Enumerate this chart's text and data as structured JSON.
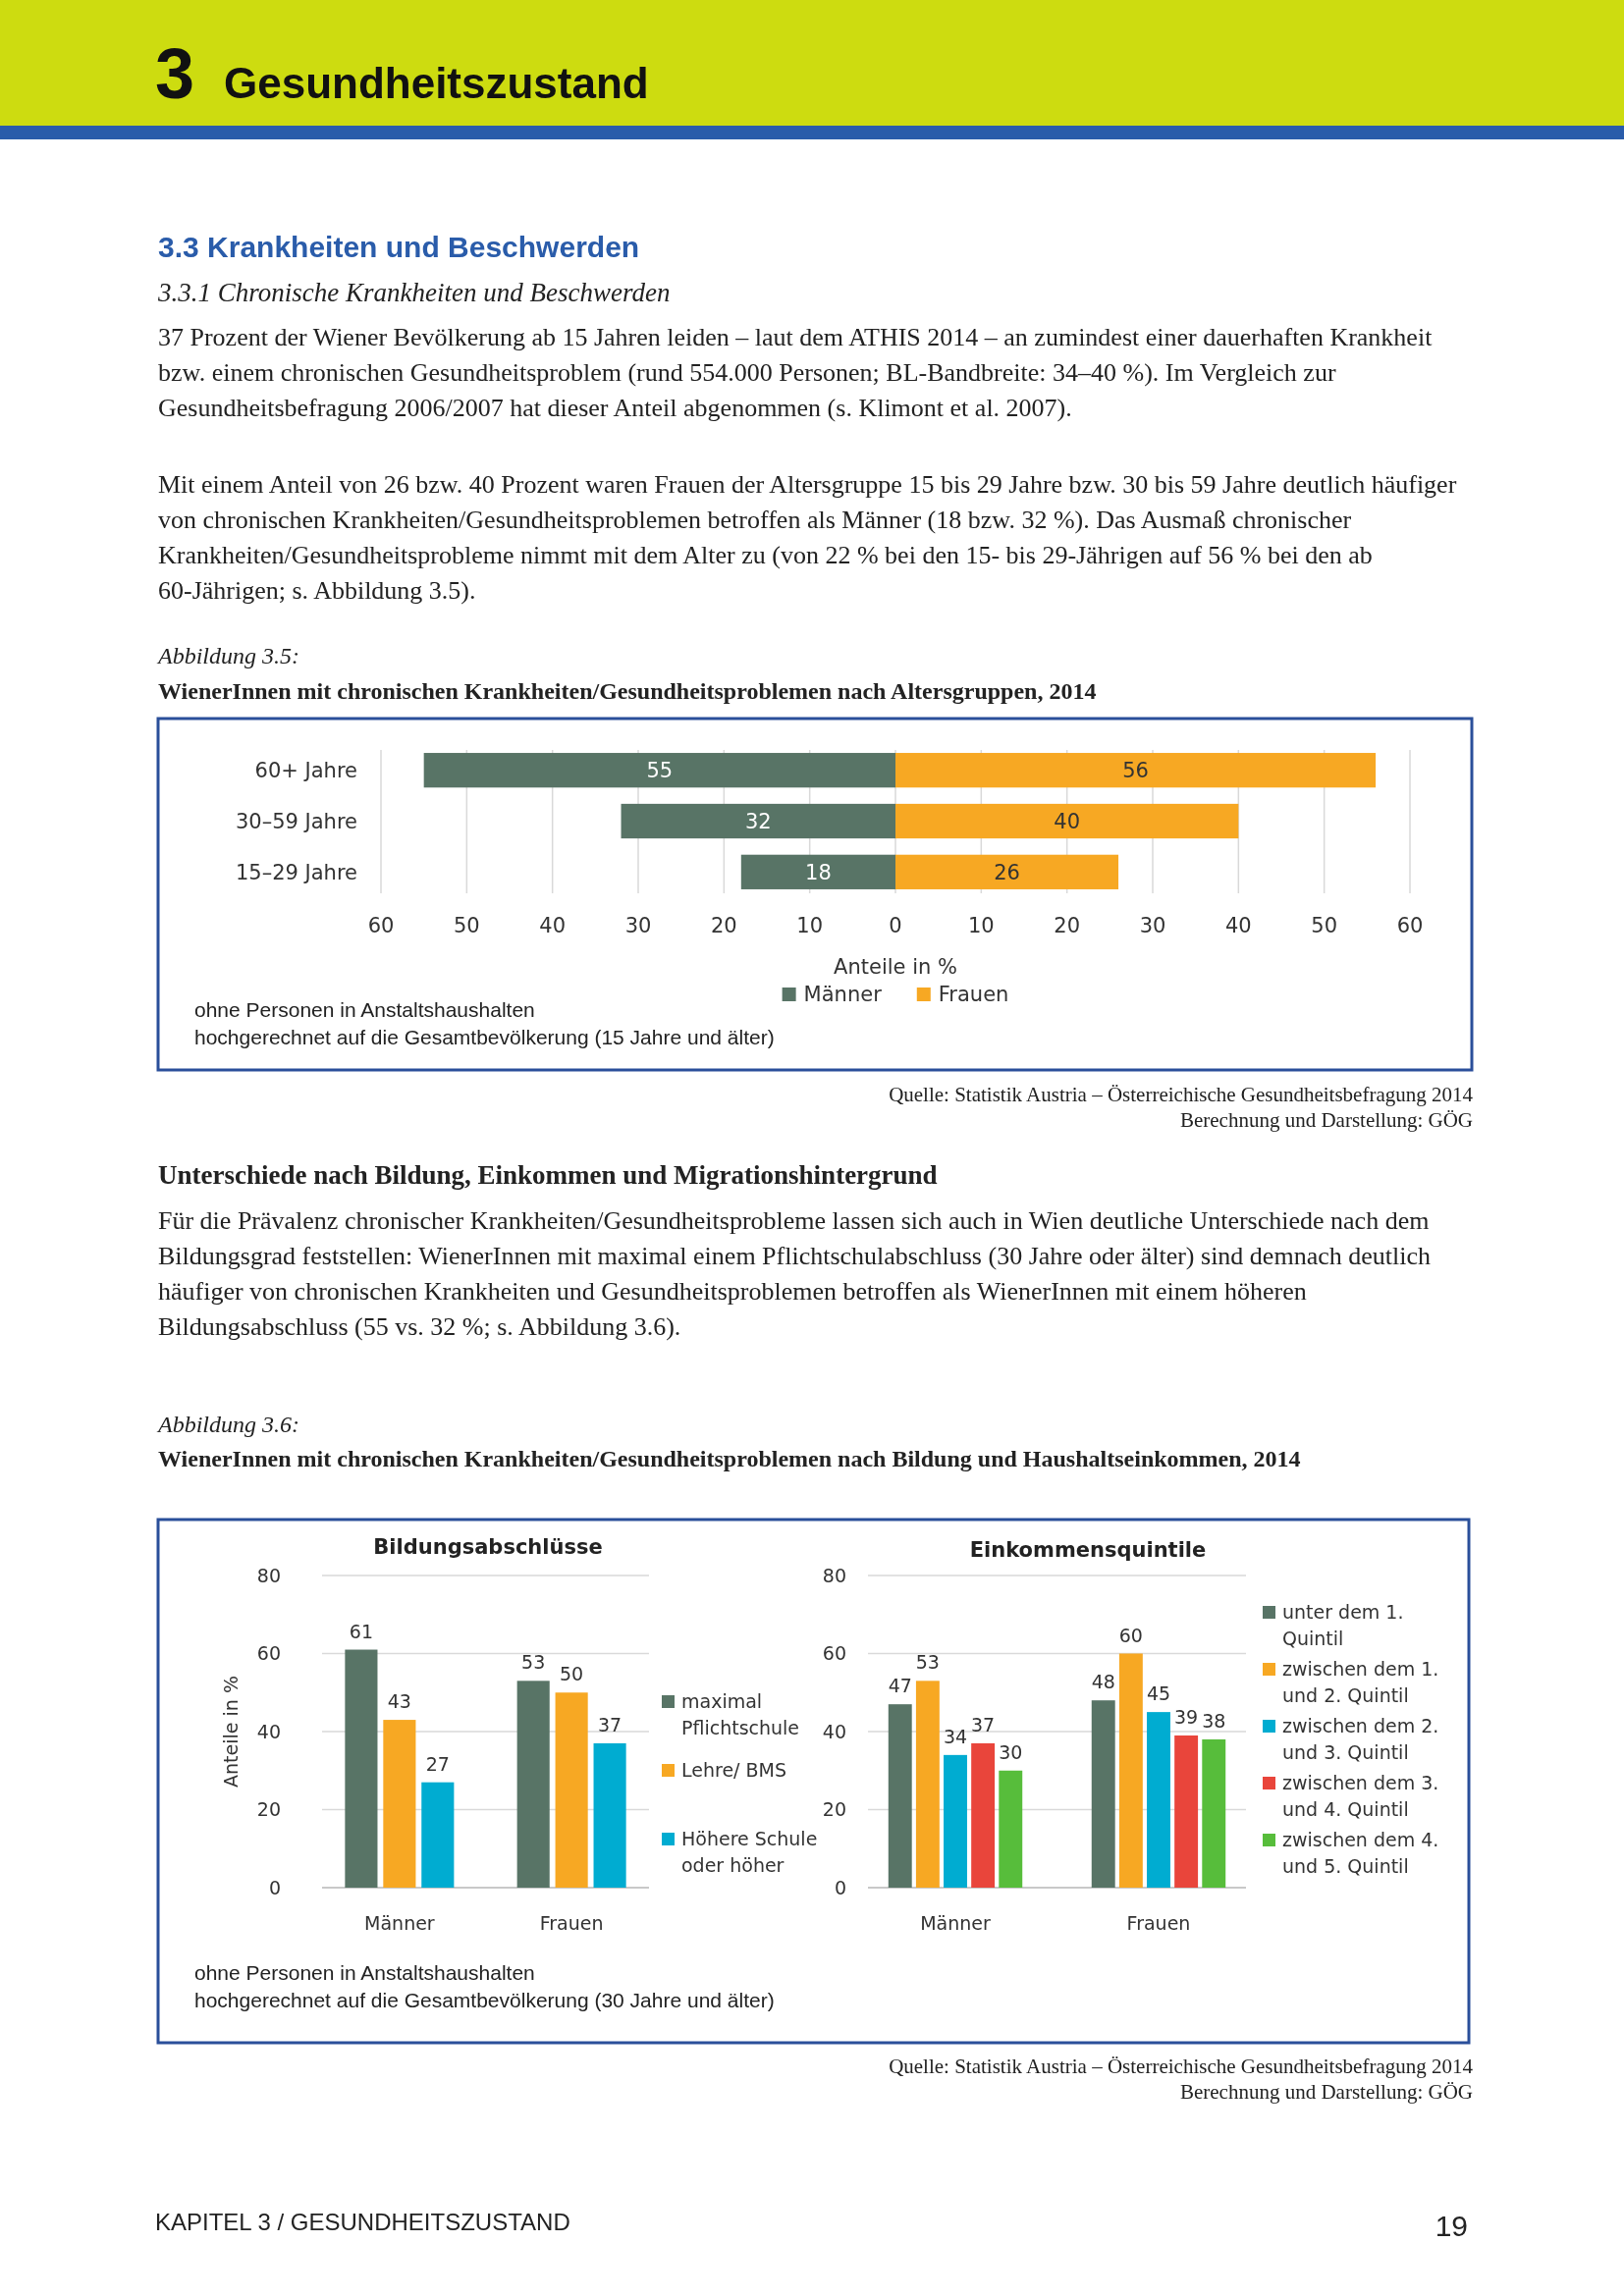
{
  "chart_data": [
    {
      "type": "bar",
      "orientation": "horizontal",
      "data_labels": true,
      "title": "WienerInnen mit chronischen Krankheiten/Gesundheitsproblemen nach Altersgruppen, 2014",
      "subtitle": "Abbildung 3.5:",
      "xlabel": "Anteile in %",
      "categories": [
        "60+ Jahre",
        "30–59 Jahre",
        "15–29 Jahre"
      ],
      "series": [
        {
          "name": "Männer",
          "color": "#587466",
          "values": [
            55,
            32,
            18
          ],
          "base": [
            -55,
            -32,
            -18
          ]
        },
        {
          "name": "Frauen",
          "color": "#f7a823",
          "values": [
            56,
            40,
            26
          ]
        }
      ],
      "xlim": [
        -60,
        60
      ],
      "xticks": [
        {
          "value": -60,
          "label": "60"
        },
        {
          "value": -50,
          "label": "50"
        },
        {
          "value": -40,
          "label": "40"
        },
        {
          "value": -30,
          "label": "30"
        },
        {
          "value": -20,
          "label": "20"
        },
        {
          "value": -10,
          "label": "10"
        },
        0,
        10,
        20,
        30,
        40,
        50,
        60
      ],
      "grid": "x",
      "legend": "bottom",
      "annotations": [
        "3",
        "Gesundheitszustand",
        "3.3 Krankheiten und Beschwerden",
        "3.3.1 Chronische Krankheiten und Beschwerden",
        "37 Prozent der Wiener Bevölkerung ab 15 Jahren leiden – laut dem ATHIS 2014 – an zumindest einer dauerhaften Krankheit bzw. einem chronischen Gesundheitsproblem (rund 554.000 Personen; BL-Bandbreite: 34–40 %). Im Vergleich zur Gesundheitsbefragung 2006/2007 hat dieser Anteil abgenommen (s. Klimont et al. 2007).",
        "Mit einem Anteil von 26 bzw. 40 Prozent waren Frauen der Altersgruppe 15 bis 29 Jahre bzw. 30 bis 59 Jahre deutlich häufiger von chronischen Krankheiten/Gesundheitsproblemen betroffen als Männer (18 bzw. 32 %). Das Ausmaß chronischer Krankheiten/Gesundheitsprobleme nimmt mit dem Alter zu (von 22 % bei den 15- bis 29-Jährigen auf 56 % bei den ab 60-Jährigen; s. Abbildung 3.5).",
        "ohne Personen in Anstaltshaushalten",
        "hochgerechnet auf die Gesamtbevölkerung (15 Jahre und älter)",
        "Quelle: Statistik Austria – Österreichische Gesundheitsbefragung 2014",
        "Berechnung und Darstellung: GÖG"
      ]
    },
    {
      "type": "bar",
      "title": "Bildungsabschlüsse",
      "ylabel": "Anteile in %",
      "categories": [
        "Männer",
        "Frauen"
      ],
      "series": [
        {
          "name": "maximal Pflichtschule",
          "color": "#587466",
          "values": [
            61,
            53
          ]
        },
        {
          "name": "Lehre/ BMS",
          "color": "#f7a823",
          "values": [
            43,
            50
          ]
        },
        {
          "name": "Höhere Schule oder höher",
          "color": "#00acd1",
          "values": [
            27,
            37
          ]
        }
      ],
      "ylim": [
        0,
        80
      ],
      "yticks": [
        0,
        20,
        40,
        60,
        80
      ],
      "grid": "y",
      "legend": "right",
      "data_labels": true,
      "annotations": [
        "Unterschiede nach Bildung, Einkommen und Migrationshintergrund",
        "Für die Prävalenz chronischer Krankheiten/Gesundheitsprobleme lassen sich auch in Wien deutliche Unterschiede nach dem Bildungsgrad feststellen: WienerInnen mit maximal einem Pflichtschulabschluss (30 Jahre oder älter) sind demnach deutlich häufiger von chronischen Krankheiten und Gesundheitsproblemen betroffen als WienerInnen mit einem höheren Bildungsabschluss (55 vs. 32 %; s. Abbildung 3.6).",
        "Abbildung 3.6:",
        "WienerInnen mit chronischen Krankheiten/Gesundheitsproblemen nach Bildung und Haushaltseinkommen, 2014",
        "ohne Personen in Anstaltshaushalten",
        "hochgerechnet auf die Gesamtbevölkerung (30 Jahre und älter)",
        "Quelle: Statistik Austria – Österreichische Gesundheitsbefragung 2014",
        "Berechnung und Darstellung: GÖG"
      ]
    },
    {
      "type": "bar",
      "title": "Einkommensquintile",
      "categories": [
        "Männer",
        "Frauen"
      ],
      "series": [
        {
          "name": "unter dem 1. Quintil",
          "color": "#587466",
          "values": [
            47,
            48
          ]
        },
        {
          "name": "zwischen dem 1. und 2. Quintil",
          "color": "#f7a823",
          "values": [
            53,
            60
          ]
        },
        {
          "name": "zwischen dem 2. und 3. Quintil",
          "color": "#00acd1",
          "values": [
            34,
            45
          ]
        },
        {
          "name": "zwischen dem 3. und 4. Quintil",
          "color": "#e9453b",
          "values": [
            37,
            39
          ]
        },
        {
          "name": "zwischen dem 4. und 5. Quintil",
          "color": "#57bd3b",
          "values": [
            30,
            38
          ]
        }
      ],
      "ylim": [
        0,
        80
      ],
      "yticks": [
        0,
        20,
        40,
        60,
        80
      ],
      "grid": "y",
      "legend": "right",
      "data_labels": true,
      "annotations": [
        "KAPITEL 3 / GESUNDHEITSZUSTAND",
        "19"
      ]
    }
  ]
}
